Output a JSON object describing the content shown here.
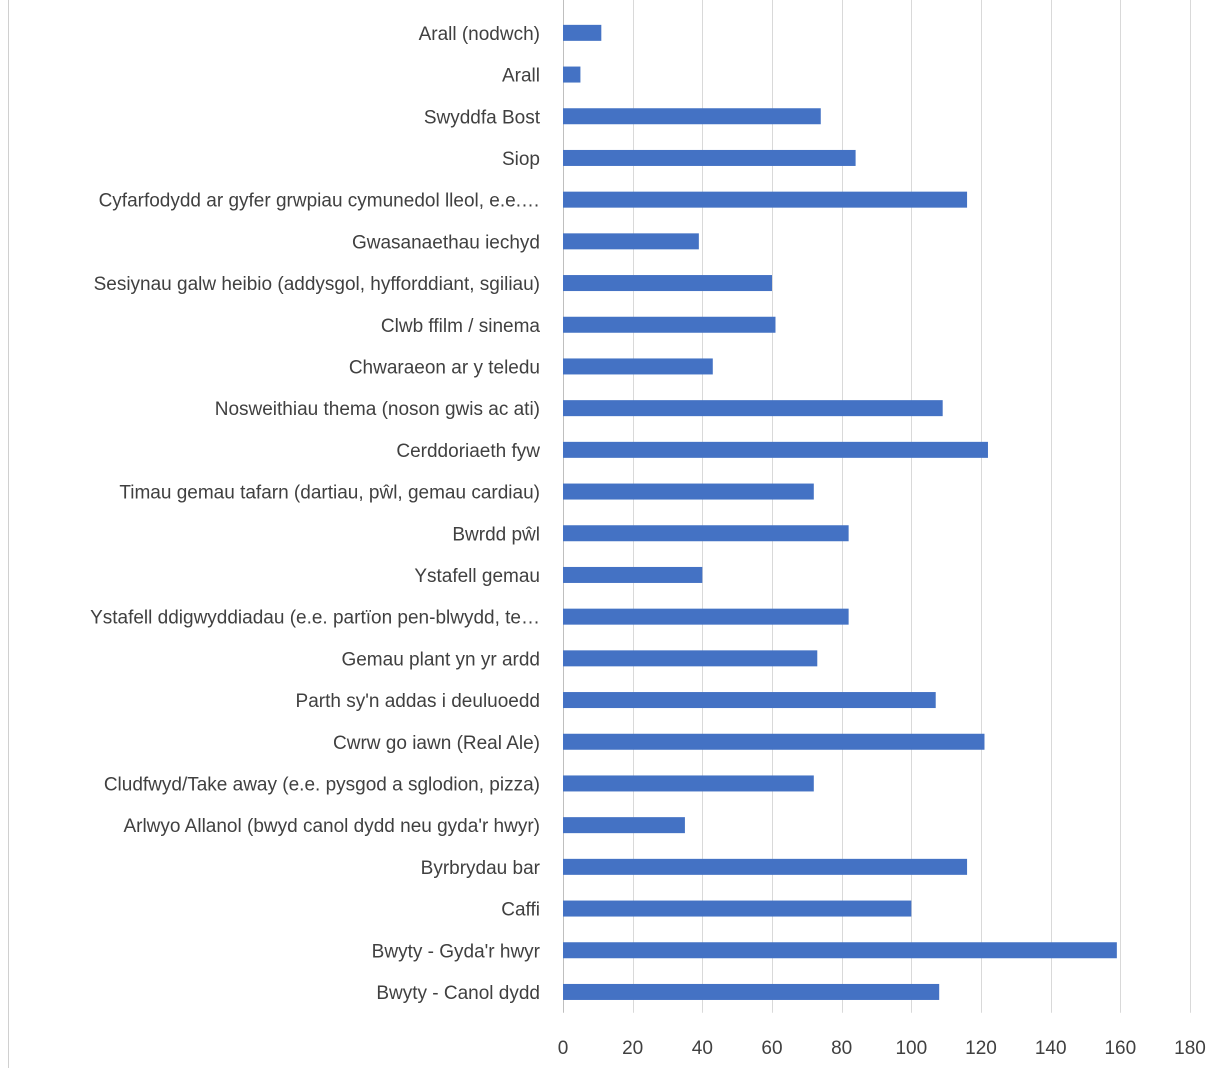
{
  "chart_data": {
    "type": "bar",
    "orientation": "horizontal",
    "title": "",
    "xlabel": "",
    "ylabel": "",
    "categories": [
      "Arall (nodwch)",
      "Arall",
      "Swyddfa Bost",
      "Siop",
      "Cyfarfodydd ar gyfer grwpiau cymunedol lleol, e.e.…",
      "Gwasanaethau iechyd",
      "Sesiynau galw heibio (addysgol, hyfforddiant, sgiliau)",
      "Clwb ffilm / sinema",
      "Chwaraeon ar y teledu",
      "Nosweithiau thema (noson gwis ac ati)",
      "Cerddoriaeth fyw",
      "Timau gemau tafarn (dartiau, pŵl, gemau cardiau)",
      "Bwrdd pŵl",
      "Ystafell gemau",
      "Ystafell ddigwyddiadau (e.e. partïon pen-blwydd, te…",
      "Gemau plant yn yr ardd",
      "Parth sy'n addas i deuluoedd",
      "Cwrw go iawn (Real Ale)",
      "Cludfwyd/Take away (e.e. pysgod a sglodion, pizza)",
      "Arlwyo Allanol (bwyd canol dydd neu gyda'r hwyr)",
      "Byrbrydau bar",
      "Caffi",
      "Bwyty - Gyda'r hwyr",
      "Bwyty - Canol dydd"
    ],
    "values": [
      11,
      5,
      74,
      84,
      116,
      39,
      60,
      61,
      43,
      109,
      122,
      72,
      82,
      40,
      82,
      73,
      107,
      121,
      72,
      35,
      116,
      100,
      159,
      108
    ],
    "xlim": [
      0,
      180
    ],
    "xticks": [
      "0",
      "20",
      "40",
      "60",
      "80",
      "100",
      "120",
      "140",
      "160",
      "180"
    ],
    "bar_color": "#4472c4",
    "grid": "vertical",
    "legend": "none"
  }
}
